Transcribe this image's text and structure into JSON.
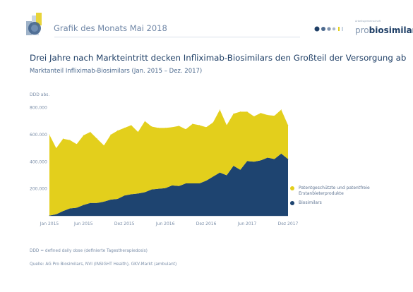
{
  "header": {
    "title": "Grafik des Monats Mai 2018"
  },
  "brand": {
    "tagline": "Arbeitsgemeinschaft",
    "word_pro": "pro",
    "word_bio": "biosimilars"
  },
  "headline": "Drei Jahre nach Markteintritt decken Infliximab-Biosimilars den Großteil der Versorgung ab",
  "subtitle": "Marktanteil Infliximab-Biosimilars (Jan. 2015 – Dez. 2017)",
  "footnote": "DDD = defined daily dose (definierte Tagestherapiedosis)",
  "source": "Quelle: AG Pro Biosimilars, NVI (INSIGHT Health), GKV-Markt (ambulant)",
  "colors": {
    "originator": "#e3cf1c",
    "biosimilar": "#1e4470",
    "text": "#1f3f66"
  },
  "chart_data": {
    "type": "area",
    "stacked": true,
    "ylabel": "DDD abs.",
    "ylim": [
      0,
      850000
    ],
    "yticks": [
      {
        "value": 200000,
        "label": "200.000"
      },
      {
        "value": 400000,
        "label": "400.000"
      },
      {
        "value": 600000,
        "label": "600.000"
      },
      {
        "value": 800000,
        "label": "800.000"
      }
    ],
    "xticks": [
      {
        "index": 0,
        "label": "Jan 2015"
      },
      {
        "index": 5,
        "label": "Jun 2015"
      },
      {
        "index": 11,
        "label": "Dez 2015"
      },
      {
        "index": 17,
        "label": "Jun 2016"
      },
      {
        "index": 23,
        "label": "Dez 2016"
      },
      {
        "index": 29,
        "label": "Jun 2017"
      },
      {
        "index": 35,
        "label": "Dez 2017"
      }
    ],
    "months": [
      "2015-01",
      "2015-02",
      "2015-03",
      "2015-04",
      "2015-05",
      "2015-06",
      "2015-07",
      "2015-08",
      "2015-09",
      "2015-10",
      "2015-11",
      "2015-12",
      "2016-01",
      "2016-02",
      "2016-03",
      "2016-04",
      "2016-05",
      "2016-06",
      "2016-07",
      "2016-08",
      "2016-09",
      "2016-10",
      "2016-11",
      "2016-12",
      "2017-01",
      "2017-02",
      "2017-03",
      "2017-04",
      "2017-05",
      "2017-06",
      "2017-07",
      "2017-08",
      "2017-09",
      "2017-10",
      "2017-11",
      "2017-12"
    ],
    "series": [
      {
        "name": "Biosimilars",
        "color": "#1e4470",
        "values": [
          2000,
          12000,
          35000,
          55000,
          60000,
          80000,
          95000,
          95000,
          105000,
          120000,
          125000,
          150000,
          160000,
          165000,
          175000,
          195000,
          200000,
          205000,
          225000,
          220000,
          240000,
          240000,
          240000,
          260000,
          290000,
          320000,
          300000,
          370000,
          340000,
          405000,
          400000,
          410000,
          430000,
          420000,
          460000,
          420000
        ]
      },
      {
        "name": "Patentgeschützte und patentfreie Erstanbieterprodukte",
        "color": "#e3cf1c",
        "values": [
          598000,
          488000,
          535000,
          505000,
          470000,
          515000,
          525000,
          475000,
          415000,
          480000,
          505000,
          500000,
          510000,
          455000,
          525000,
          465000,
          450000,
          445000,
          430000,
          445000,
          400000,
          440000,
          430000,
          395000,
          400000,
          465000,
          370000,
          385000,
          430000,
          365000,
          335000,
          350000,
          315000,
          320000,
          325000,
          250000
        ]
      }
    ],
    "legend_position": "right",
    "grid": false
  }
}
